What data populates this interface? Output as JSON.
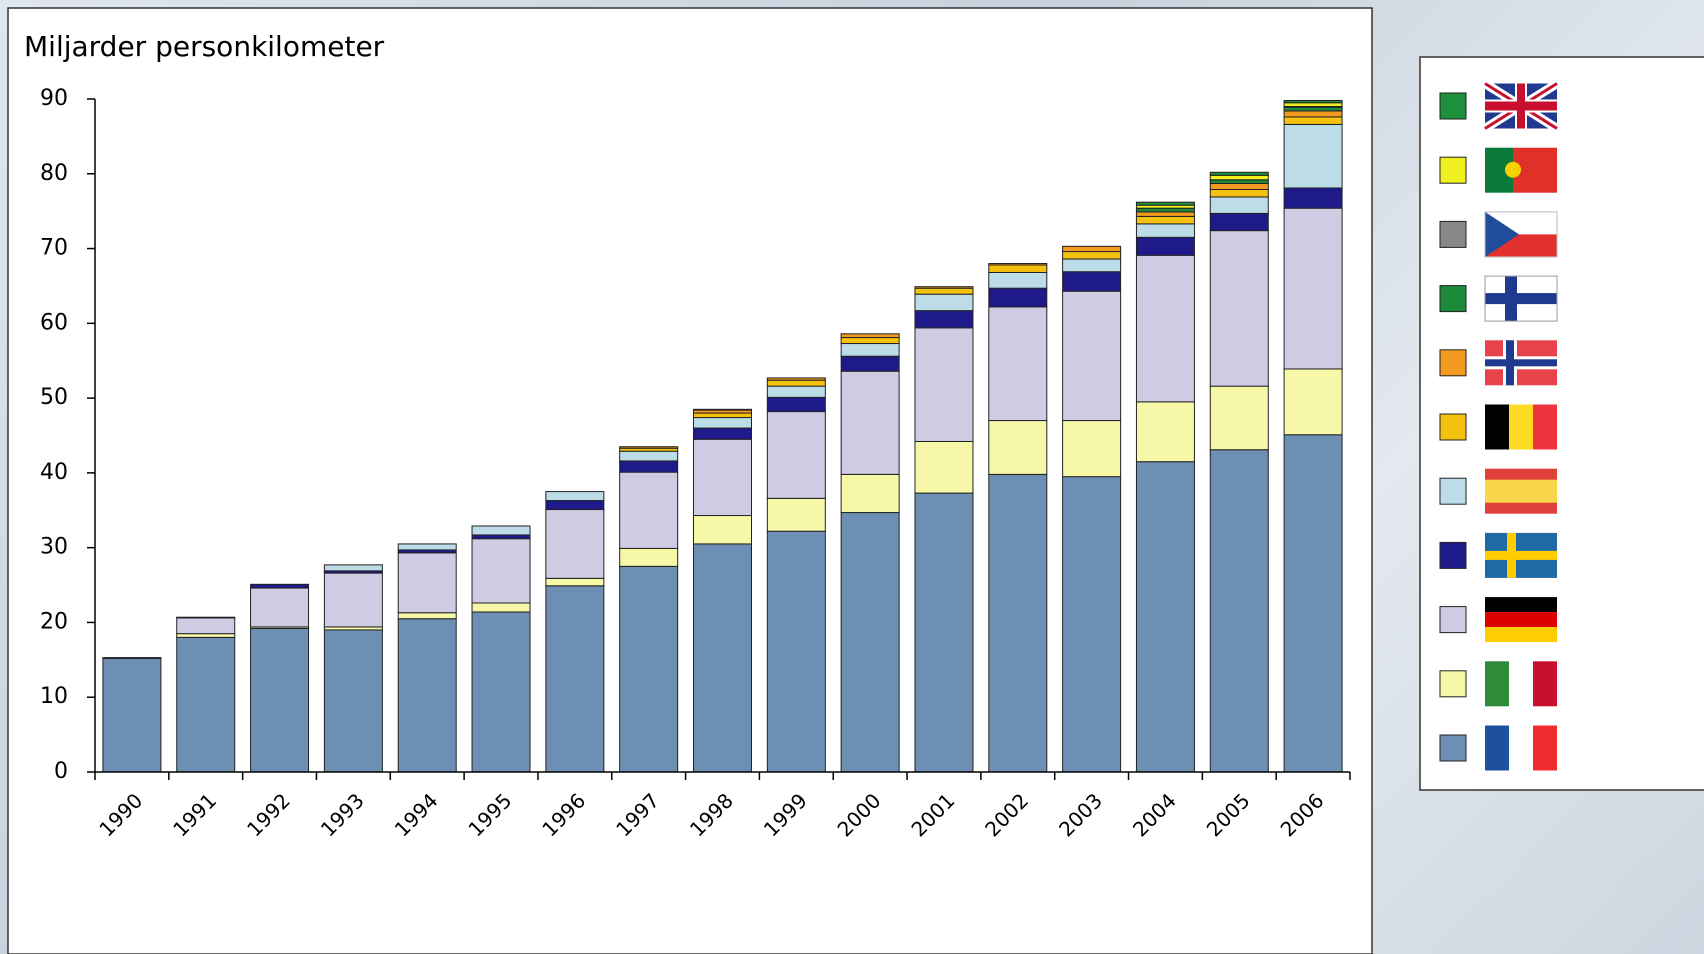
{
  "chart_data": {
    "type": "stacked_bar",
    "title": "Miljarder personkilometer",
    "categories": [
      "1990",
      "1991",
      "1992",
      "1993",
      "1994",
      "1995",
      "1996",
      "1997",
      "1998",
      "1999",
      "2000",
      "2001",
      "2002",
      "2003",
      "2004",
      "2005",
      "2006"
    ],
    "series": [
      {
        "color": "#6d8fb3",
        "values": [
          15.2,
          18.0,
          19.2,
          19.0,
          20.5,
          21.4,
          24.9,
          27.5,
          30.5,
          32.2,
          34.7,
          37.3,
          39.8,
          39.5,
          41.5,
          43.1,
          45.1
        ]
      },
      {
        "color": "#f7f7a8",
        "values": [
          0,
          0.5,
          0.2,
          0.4,
          0.8,
          1.2,
          1.0,
          2.4,
          3.8,
          4.4,
          5.1,
          6.9,
          7.2,
          7.5,
          8.0,
          8.5,
          8.8
        ]
      },
      {
        "color": "#cfcbe3",
        "values": [
          0,
          2.1,
          5.2,
          7.2,
          8.0,
          8.6,
          9.2,
          10.2,
          10.2,
          11.6,
          13.8,
          15.2,
          15.2,
          17.3,
          19.6,
          20.8,
          21.5
        ]
      },
      {
        "color": "#1f1a8a",
        "values": [
          0.1,
          0.1,
          0.5,
          0.3,
          0.4,
          0.5,
          1.2,
          1.5,
          1.5,
          1.9,
          2.0,
          2.3,
          2.5,
          2.6,
          2.4,
          2.3,
          2.7
        ]
      },
      {
        "color": "#bcdce8",
        "values": [
          0,
          0,
          0,
          0.8,
          0.8,
          1.2,
          1.2,
          1.3,
          1.4,
          1.5,
          1.7,
          2.2,
          2.1,
          1.7,
          1.8,
          2.2,
          8.5
        ]
      },
      {
        "color": "#f5c10f",
        "values": [
          0,
          0,
          0,
          0,
          0,
          0,
          0,
          0.4,
          0.6,
          0.8,
          0.8,
          0.8,
          1.0,
          1.0,
          1.0,
          1.0,
          1.0
        ]
      },
      {
        "color": "#f29a1f",
        "values": [
          0,
          0,
          0,
          0,
          0,
          0,
          0,
          0.2,
          0.4,
          0.3,
          0.5,
          0.2,
          0.2,
          0.7,
          0.6,
          0.8,
          0.8
        ]
      },
      {
        "color": "#1c8a3b",
        "values": [
          0,
          0,
          0,
          0,
          0,
          0,
          0,
          0,
          0.1,
          0,
          0,
          0,
          0,
          0,
          0.5,
          0.5,
          0.5
        ]
      },
      {
        "color": "#888888",
        "values": [
          0,
          0,
          0,
          0,
          0,
          0,
          0,
          0,
          0,
          0,
          0,
          0,
          0,
          0,
          0,
          0,
          0.1
        ]
      },
      {
        "color": "#f0f020",
        "values": [
          0,
          0,
          0,
          0,
          0,
          0,
          0,
          0,
          0,
          0,
          0,
          0,
          0,
          0,
          0.4,
          0.6,
          0.5
        ]
      },
      {
        "color": "#1e8f3a",
        "values": [
          0,
          0,
          0,
          0,
          0,
          0,
          0,
          0,
          0,
          0,
          0,
          0,
          0,
          0,
          0.4,
          0.4,
          0.3
        ]
      }
    ],
    "ylim": [
      0,
      90
    ],
    "yticks": [
      0,
      10,
      20,
      30,
      40,
      50,
      60,
      70,
      80,
      90
    ]
  }
}
